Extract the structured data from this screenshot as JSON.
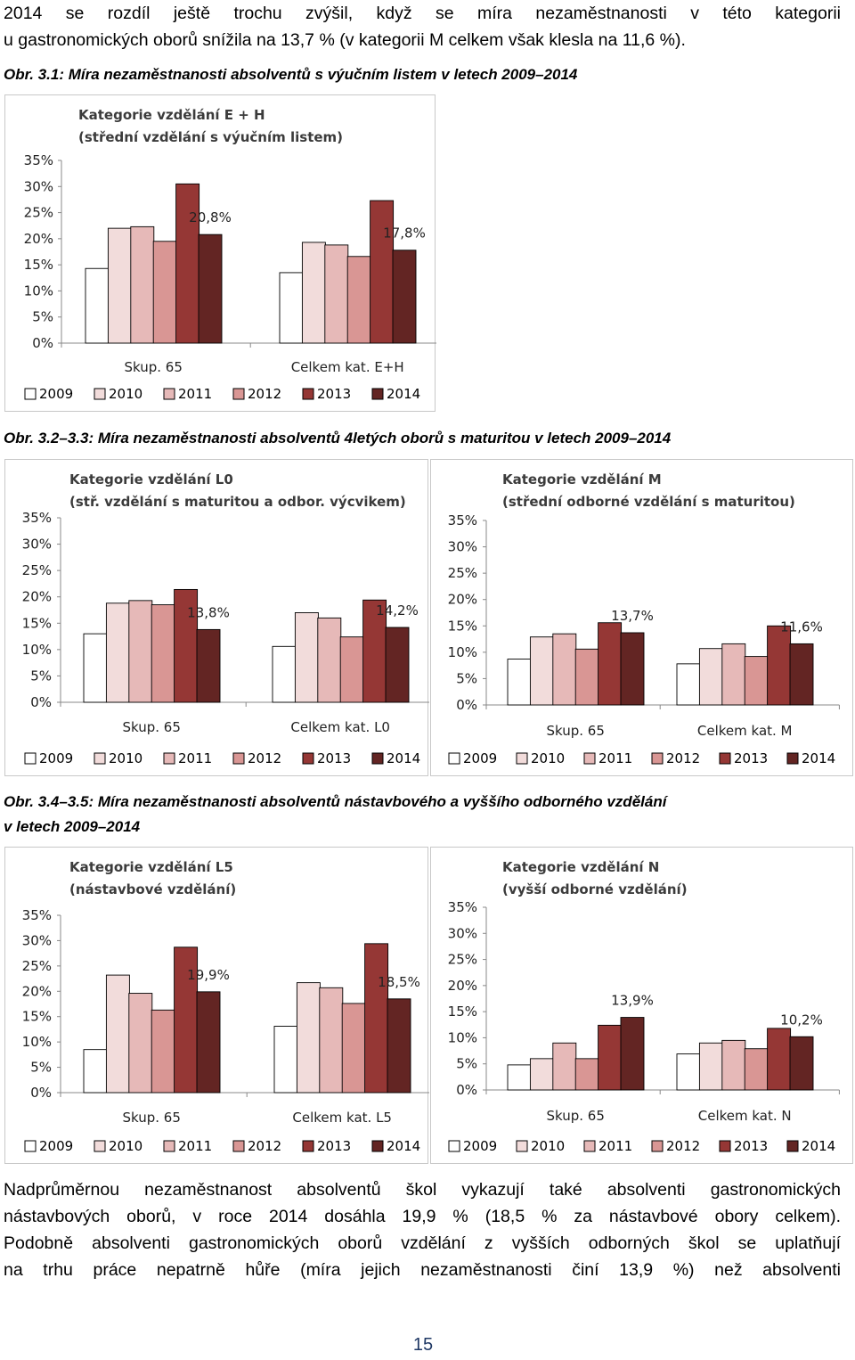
{
  "top_text": {
    "line1": "2014 se rozdíl ještě trochu zvýšil, když se míra nezaměstnanosti v této kategorii",
    "line2": "u gastronomických oborů snížila na 13,7 % (v kategorii M celkem však klesla na 11,6 %)."
  },
  "captions": {
    "fig31": "Obr. 3.1: Míra nezaměstnanosti absolventů s výučním listem v letech 2009–2014",
    "fig32_33": "Obr. 3.2–3.3: Míra nezaměstnanosti absolventů 4letých oborů s maturitou v letech 2009–2014",
    "fig34_35_line1": "Obr. 3.4–3.5: Míra nezaměstnanosti absolventů nástavbového a vyššího odborného vzdělání",
    "fig34_35_line2": "v letech 2009–2014"
  },
  "colors": {
    "2009": "#ffffff",
    "2010": "#f2dcdb",
    "2011": "#e6b9b8",
    "2012": "#d99694",
    "2013": "#953735",
    "2014": "#632523"
  },
  "chart_data": [
    {
      "type": "bar",
      "title_line1": "Kategorie vzdělání E + H",
      "title_line2": "(střední vzdělání s výučním listem)",
      "categories": [
        "Skup. 65",
        "Celkem kat. E+H"
      ],
      "series": [
        {
          "name": "2009",
          "values": [
            14.3,
            13.5
          ]
        },
        {
          "name": "2010",
          "values": [
            22.0,
            19.3
          ]
        },
        {
          "name": "2011",
          "values": [
            22.3,
            18.8
          ]
        },
        {
          "name": "2012",
          "values": [
            19.5,
            16.6
          ]
        },
        {
          "name": "2013",
          "values": [
            30.5,
            27.3
          ]
        },
        {
          "name": "2014",
          "values": [
            20.8,
            17.8
          ]
        }
      ],
      "data_labels": [
        "20,8%",
        "17,8%"
      ],
      "yticks": [
        "0%",
        "5%",
        "10%",
        "15%",
        "20%",
        "25%",
        "30%",
        "35%"
      ],
      "ylim": [
        0,
        35
      ],
      "legend": [
        "2009",
        "2010",
        "2011",
        "2012",
        "2013",
        "2014"
      ]
    },
    {
      "type": "bar",
      "title_line1": "Kategorie vzdělání L0",
      "title_line2": "(stř. vzdělání s maturitou a odbor. výcvikem)",
      "categories": [
        "Skup. 65",
        "Celkem kat. L0"
      ],
      "series": [
        {
          "name": "2009",
          "values": [
            13.0,
            10.6
          ]
        },
        {
          "name": "2010",
          "values": [
            18.8,
            17.0
          ]
        },
        {
          "name": "2011",
          "values": [
            19.3,
            16.0
          ]
        },
        {
          "name": "2012",
          "values": [
            18.5,
            12.4
          ]
        },
        {
          "name": "2013",
          "values": [
            21.4,
            19.4
          ]
        },
        {
          "name": "2014",
          "values": [
            13.8,
            14.2
          ]
        }
      ],
      "data_labels": [
        "13,8%",
        "14,2%"
      ],
      "yticks": [
        "0%",
        "5%",
        "10%",
        "15%",
        "20%",
        "25%",
        "30%",
        "35%"
      ],
      "ylim": [
        0,
        35
      ],
      "legend": [
        "2009",
        "2010",
        "2011",
        "2012",
        "2013",
        "2014"
      ]
    },
    {
      "type": "bar",
      "title_line1": "Kategorie vzdělání M",
      "title_line2": "(střední odborné vzdělání s maturitou)",
      "categories": [
        "Skup. 65",
        "Celkem kat. M"
      ],
      "series": [
        {
          "name": "2009",
          "values": [
            8.7,
            7.8
          ]
        },
        {
          "name": "2010",
          "values": [
            12.9,
            10.7
          ]
        },
        {
          "name": "2011",
          "values": [
            13.5,
            11.6
          ]
        },
        {
          "name": "2012",
          "values": [
            10.6,
            9.2
          ]
        },
        {
          "name": "2013",
          "values": [
            15.6,
            15.0
          ]
        },
        {
          "name": "2014",
          "values": [
            13.7,
            11.6
          ]
        }
      ],
      "data_labels": [
        "13,7%",
        "11,6%"
      ],
      "yticks": [
        "0%",
        "5%",
        "10%",
        "15%",
        "20%",
        "25%",
        "30%",
        "35%"
      ],
      "ylim": [
        0,
        35
      ],
      "legend": [
        "2009",
        "2010",
        "2011",
        "2012",
        "2013",
        "2014"
      ]
    },
    {
      "type": "bar",
      "title_line1": "Kategorie vzdělání L5",
      "title_line2": "(nástavbové vzdělání)",
      "categories": [
        "Skup. 65",
        "Celkem kat. L5"
      ],
      "series": [
        {
          "name": "2009",
          "values": [
            8.5,
            13.1
          ]
        },
        {
          "name": "2010",
          "values": [
            23.2,
            21.7
          ]
        },
        {
          "name": "2011",
          "values": [
            19.6,
            20.7
          ]
        },
        {
          "name": "2012",
          "values": [
            16.3,
            17.6
          ]
        },
        {
          "name": "2013",
          "values": [
            28.7,
            29.4
          ]
        },
        {
          "name": "2014",
          "values": [
            19.9,
            18.5
          ]
        }
      ],
      "data_labels": [
        "19,9%",
        "18,5%"
      ],
      "yticks": [
        "0%",
        "5%",
        "10%",
        "15%",
        "20%",
        "25%",
        "30%",
        "35%"
      ],
      "ylim": [
        0,
        35
      ],
      "legend": [
        "2009",
        "2010",
        "2011",
        "2012",
        "2013",
        "2014"
      ]
    },
    {
      "type": "bar",
      "title_line1": "Kategorie vzdělání N",
      "title_line2": "(vyšší odborné vzdělání)",
      "categories": [
        "Skup. 65",
        "Celkem kat. N"
      ],
      "series": [
        {
          "name": "2009",
          "values": [
            4.8,
            6.9
          ]
        },
        {
          "name": "2010",
          "values": [
            6.0,
            9.0
          ]
        },
        {
          "name": "2011",
          "values": [
            9.0,
            9.5
          ]
        },
        {
          "name": "2012",
          "values": [
            6.0,
            7.9
          ]
        },
        {
          "name": "2013",
          "values": [
            12.4,
            11.8
          ]
        },
        {
          "name": "2014",
          "values": [
            13.9,
            10.2
          ]
        }
      ],
      "data_labels": [
        "13,9%",
        "10,2%"
      ],
      "yticks": [
        "0%",
        "5%",
        "10%",
        "15%",
        "20%",
        "25%",
        "30%",
        "35%"
      ],
      "ylim": [
        0,
        35
      ],
      "legend": [
        "2009",
        "2010",
        "2011",
        "2012",
        "2013",
        "2014"
      ]
    }
  ],
  "bottom_text": {
    "line1": "Nadprůměrnou nezaměstnanost absolventů škol vykazují také absolventi gastronomických",
    "line2": "nástavbových oborů, v roce 2014 dosáhla 19,9 % (18,5 % za nástavbové obory celkem).",
    "line3": "Podobně absolventi gastronomických oborů vzdělání z vyšších odborných škol se uplatňují",
    "line4": "na trhu práce nepatrně hůře (míra jejich nezaměstnanosti činí 13,9 %) než absolventi"
  },
  "page_number": "15"
}
